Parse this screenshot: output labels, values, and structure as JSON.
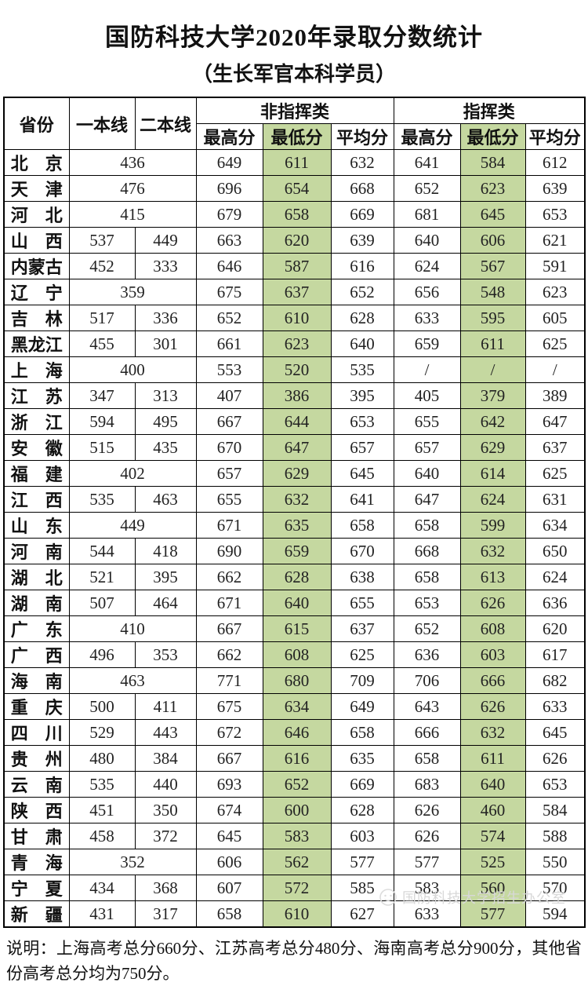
{
  "title": "国防科技大学2020年录取分数统计",
  "subtitle": "（生长军官本科学员）",
  "colors": {
    "highlight": "#c5d8a0"
  },
  "table": {
    "headers": {
      "province": "省份",
      "line1": "一本线",
      "line2": "二本线",
      "non_command_group": "非指挥类",
      "command_group": "指挥类",
      "max": "最高分",
      "min": "最低分",
      "avg": "平均分"
    },
    "rows": [
      {
        "province": "北　京",
        "line1": "436",
        "line2": null,
        "non_command": [
          "649",
          "611",
          "632"
        ],
        "command": [
          "641",
          "584",
          "612"
        ]
      },
      {
        "province": "天　津",
        "line1": "476",
        "line2": null,
        "non_command": [
          "696",
          "654",
          "668"
        ],
        "command": [
          "652",
          "623",
          "639"
        ]
      },
      {
        "province": "河　北",
        "line1": "415",
        "line2": null,
        "non_command": [
          "679",
          "658",
          "669"
        ],
        "command": [
          "681",
          "645",
          "653"
        ]
      },
      {
        "province": "山　西",
        "line1": "537",
        "line2": "449",
        "non_command": [
          "663",
          "620",
          "639"
        ],
        "command": [
          "640",
          "606",
          "621"
        ]
      },
      {
        "province": "内蒙古",
        "line1": "452",
        "line2": "333",
        "non_command": [
          "646",
          "587",
          "616"
        ],
        "command": [
          "624",
          "567",
          "591"
        ]
      },
      {
        "province": "辽　宁",
        "line1": "359",
        "line2": null,
        "non_command": [
          "675",
          "637",
          "652"
        ],
        "command": [
          "656",
          "548",
          "623"
        ]
      },
      {
        "province": "吉　林",
        "line1": "517",
        "line2": "336",
        "non_command": [
          "652",
          "610",
          "628"
        ],
        "command": [
          "633",
          "595",
          "605"
        ]
      },
      {
        "province": "黑龙江",
        "line1": "455",
        "line2": "301",
        "non_command": [
          "661",
          "623",
          "640"
        ],
        "command": [
          "659",
          "611",
          "625"
        ]
      },
      {
        "province": "上　海",
        "line1": "400",
        "line2": null,
        "non_command": [
          "553",
          "520",
          "535"
        ],
        "command": [
          "/",
          "/",
          "/"
        ]
      },
      {
        "province": "江　苏",
        "line1": "347",
        "line2": "313",
        "non_command": [
          "407",
          "386",
          "395"
        ],
        "command": [
          "405",
          "379",
          "389"
        ]
      },
      {
        "province": "浙　江",
        "line1": "594",
        "line2": "495",
        "non_command": [
          "667",
          "644",
          "653"
        ],
        "command": [
          "655",
          "642",
          "647"
        ]
      },
      {
        "province": "安　徽",
        "line1": "515",
        "line2": "435",
        "non_command": [
          "670",
          "647",
          "657"
        ],
        "command": [
          "657",
          "629",
          "637"
        ]
      },
      {
        "province": "福　建",
        "line1": "402",
        "line2": null,
        "non_command": [
          "657",
          "629",
          "645"
        ],
        "command": [
          "640",
          "614",
          "625"
        ]
      },
      {
        "province": "江　西",
        "line1": "535",
        "line2": "463",
        "non_command": [
          "655",
          "632",
          "641"
        ],
        "command": [
          "647",
          "624",
          "631"
        ]
      },
      {
        "province": "山　东",
        "line1": "449",
        "line2": null,
        "non_command": [
          "671",
          "635",
          "658"
        ],
        "command": [
          "658",
          "599",
          "634"
        ]
      },
      {
        "province": "河　南",
        "line1": "544",
        "line2": "418",
        "non_command": [
          "690",
          "659",
          "670"
        ],
        "command": [
          "668",
          "632",
          "650"
        ]
      },
      {
        "province": "湖　北",
        "line1": "521",
        "line2": "395",
        "non_command": [
          "662",
          "628",
          "638"
        ],
        "command": [
          "658",
          "613",
          "624"
        ]
      },
      {
        "province": "湖　南",
        "line1": "507",
        "line2": "464",
        "non_command": [
          "671",
          "640",
          "655"
        ],
        "command": [
          "653",
          "626",
          "636"
        ]
      },
      {
        "province": "广　东",
        "line1": "410",
        "line2": null,
        "non_command": [
          "667",
          "615",
          "637"
        ],
        "command": [
          "652",
          "608",
          "620"
        ]
      },
      {
        "province": "广　西",
        "line1": "496",
        "line2": "353",
        "non_command": [
          "662",
          "608",
          "625"
        ],
        "command": [
          "636",
          "603",
          "617"
        ]
      },
      {
        "province": "海　南",
        "line1": "463",
        "line2": null,
        "non_command": [
          "771",
          "680",
          "709"
        ],
        "command": [
          "706",
          "666",
          "682"
        ]
      },
      {
        "province": "重　庆",
        "line1": "500",
        "line2": "411",
        "non_command": [
          "675",
          "634",
          "649"
        ],
        "command": [
          "643",
          "626",
          "633"
        ]
      },
      {
        "province": "四　川",
        "line1": "529",
        "line2": "443",
        "non_command": [
          "672",
          "646",
          "658"
        ],
        "command": [
          "666",
          "632",
          "645"
        ]
      },
      {
        "province": "贵　州",
        "line1": "480",
        "line2": "384",
        "non_command": [
          "667",
          "616",
          "635"
        ],
        "command": [
          "658",
          "611",
          "626"
        ]
      },
      {
        "province": "云　南",
        "line1": "535",
        "line2": "440",
        "non_command": [
          "693",
          "652",
          "669"
        ],
        "command": [
          "683",
          "640",
          "653"
        ]
      },
      {
        "province": "陕　西",
        "line1": "451",
        "line2": "350",
        "non_command": [
          "674",
          "600",
          "628"
        ],
        "command": [
          "626",
          "460",
          "584"
        ]
      },
      {
        "province": "甘　肃",
        "line1": "458",
        "line2": "372",
        "non_command": [
          "645",
          "583",
          "603"
        ],
        "command": [
          "626",
          "574",
          "588"
        ]
      },
      {
        "province": "青　海",
        "line1": "352",
        "line2": null,
        "non_command": [
          "606",
          "562",
          "577"
        ],
        "command": [
          "577",
          "525",
          "550"
        ]
      },
      {
        "province": "宁　夏",
        "line1": "434",
        "line2": "368",
        "non_command": [
          "607",
          "572",
          "585"
        ],
        "command": [
          "583",
          "560",
          "570"
        ]
      },
      {
        "province": "新　疆",
        "line1": "431",
        "line2": "317",
        "non_command": [
          "658",
          "610",
          "627"
        ],
        "command": [
          "633",
          "577",
          "594"
        ]
      }
    ]
  },
  "note": "说明：上海高考总分660分、江苏高考总分480分、海南高考总分900分，其他省份高考总分均为750分。",
  "footer": {
    "label": "国防科技大学招生办公室"
  }
}
